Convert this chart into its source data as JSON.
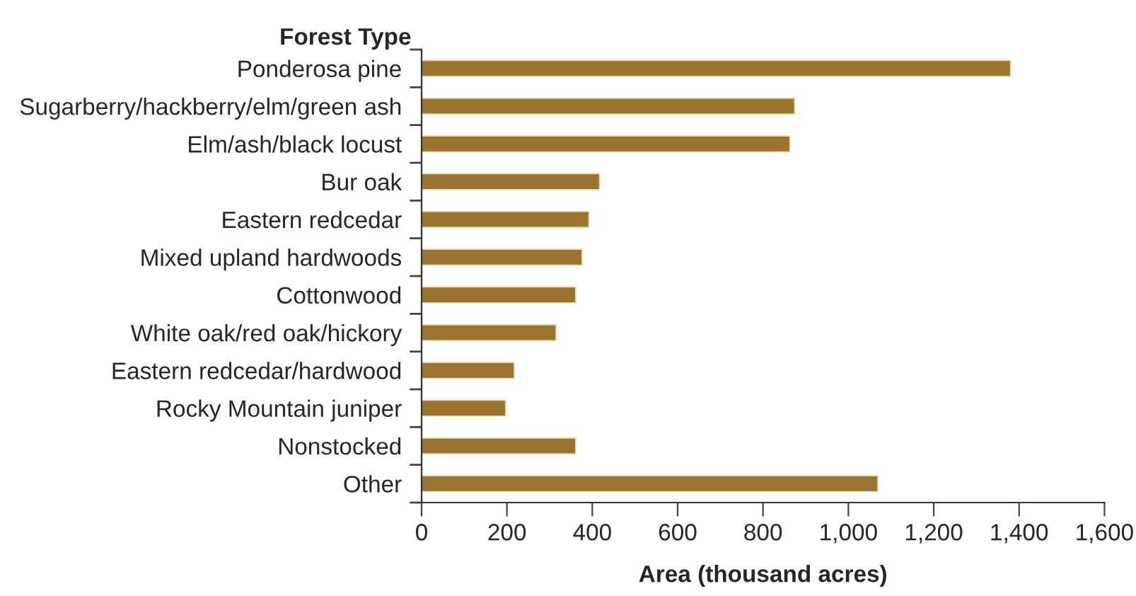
{
  "chart_data": {
    "type": "bar",
    "orientation": "horizontal",
    "ylabel": "Forest Type",
    "xlabel": "Area (thousand acres)",
    "categories": [
      "Ponderosa pine",
      "Sugarberry/hackberry/elm/green ash",
      "Elm/ash/black locust",
      "Bur oak",
      "Eastern redcedar",
      "Mixed upland hardwoods",
      "Cottonwood",
      "White oak/red oak/hickory",
      "Eastern redcedar/hardwood",
      "Rocky Mountain juniper",
      "Nonstocked",
      "Other"
    ],
    "series": [
      {
        "color": "#9a742e",
        "values": [
          1380,
          874,
          863,
          417,
          392,
          376,
          361,
          315,
          217,
          197,
          361,
          1069
        ]
      }
    ],
    "xlim": [
      0,
      1600
    ],
    "xticks": [
      0,
      200,
      400,
      600,
      800,
      {
        "value": 1000,
        "label": "1,000"
      },
      {
        "value": 1200,
        "label": "1,200"
      },
      {
        "value": 1400,
        "label": "1,400"
      },
      {
        "value": 1600,
        "label": "1,600"
      }
    ],
    "grid": false,
    "legend": false
  }
}
